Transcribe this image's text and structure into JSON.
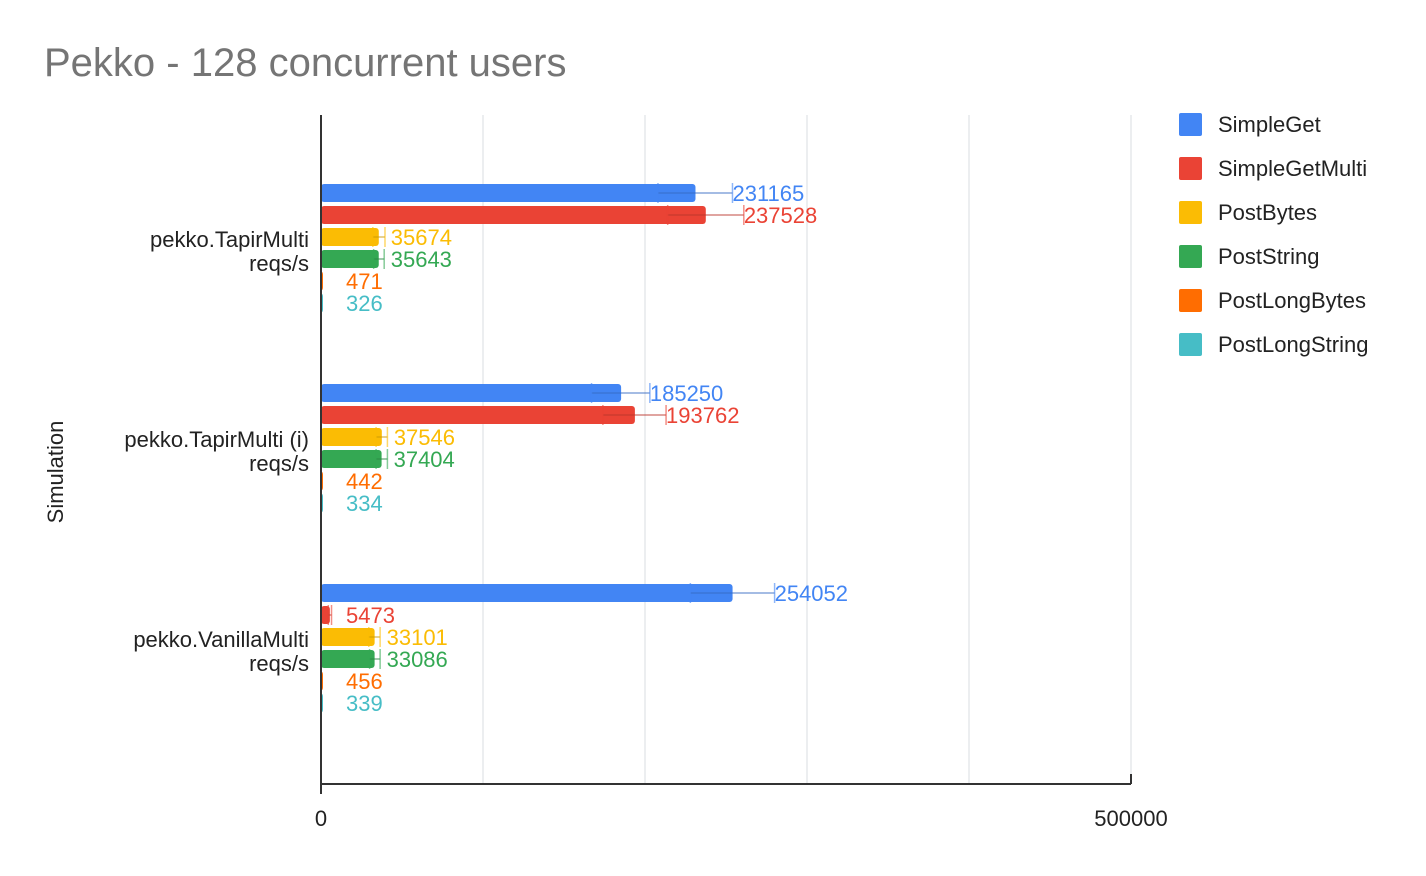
{
  "chart_data": {
    "type": "bar",
    "orientation": "horizontal",
    "title": "Pekko - 128 concurrent users",
    "xlabel": "",
    "ylabel": "Simulation",
    "xlim": [
      0,
      500000
    ],
    "x_ticks": [
      "0",
      "500000"
    ],
    "grid": true,
    "legend_position": "right",
    "categories": [
      [
        "pekko.TapirMulti",
        "reqs/s"
      ],
      [
        "pekko.TapirMulti (i)",
        "reqs/s"
      ],
      [
        "pekko.VanillaMulti",
        "reqs/s"
      ]
    ],
    "series": [
      {
        "name": "SimpleGet",
        "color": "#4285f4",
        "values": [
          231165,
          185250,
          254052
        ],
        "error_low": [
          208000,
          167000,
          228000
        ],
        "error_high": [
          254000,
          203000,
          280000
        ]
      },
      {
        "name": "SimpleGetMulti",
        "color": "#ea4335",
        "values": [
          237528,
          193762,
          5473
        ],
        "error_low": [
          214000,
          174000,
          4500
        ],
        "error_high": [
          261000,
          213000,
          6500
        ]
      },
      {
        "name": "PostBytes",
        "color": "#fbbc04",
        "values": [
          35674,
          37546,
          33101
        ],
        "error_low": [
          32000,
          34000,
          29500
        ],
        "error_high": [
          39500,
          41000,
          36500
        ]
      },
      {
        "name": "PostString",
        "color": "#34a853",
        "values": [
          35643,
          37404,
          33086
        ],
        "error_low": [
          32500,
          34000,
          30000
        ],
        "error_high": [
          39000,
          41000,
          36500
        ]
      },
      {
        "name": "PostLongBytes",
        "color": "#ff6d01",
        "values": [
          471,
          442,
          456
        ]
      },
      {
        "name": "PostLongString",
        "color": "#46bdc6",
        "values": [
          326,
          334,
          339
        ]
      }
    ]
  }
}
